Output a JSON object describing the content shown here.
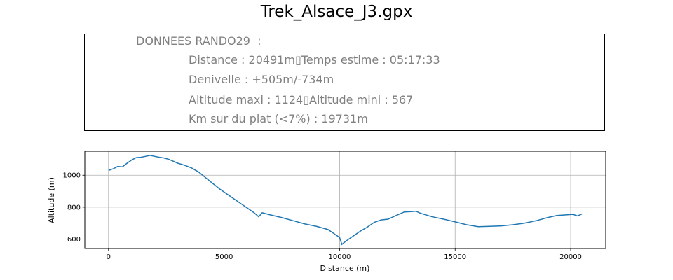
{
  "figure": {
    "title": "Trek_Alsace_J3.gpx"
  },
  "info": {
    "heading": "DONNEES RANDO29  :",
    "lines": [
      "Distance : 20491m▯Temps estime : 05:17:33",
      "Denivelle : +505m/-734m",
      "Altitude maxi : 1124▯Altitude mini : 567",
      "Km sur du plat (<7%) : 19731m"
    ]
  },
  "chart_data": {
    "type": "line",
    "xlabel": "Distance (m)",
    "ylabel": "Altitude (m)",
    "xlim": [
      -1025,
      21516
    ],
    "ylim": [
      541,
      1150
    ],
    "xticks": [
      0,
      5000,
      10000,
      15000,
      20000
    ],
    "yticks": [
      600,
      800,
      1000
    ],
    "grid": true,
    "line_color": "#1f77b4",
    "series": [
      {
        "x": [
          0,
          200,
          400,
          600,
          800,
          1000,
          1200,
          1400,
          1600,
          1800,
          2000,
          2200,
          2400,
          2600,
          2800,
          3000,
          3300,
          3600,
          3900,
          4200,
          4500,
          4800,
          5100,
          5400,
          5700,
          6000,
          6300,
          6500,
          6650,
          7000,
          7500,
          8000,
          8500,
          9000,
          9500,
          9800,
          10000,
          10100,
          10300,
          10600,
          10900,
          11200,
          11500,
          11800,
          12100,
          12400,
          12800,
          13100,
          13300,
          13500,
          14000,
          14500,
          15000,
          15500,
          16000,
          16500,
          17000,
          17500,
          18000,
          18500,
          19000,
          19400,
          19800,
          20100,
          20300,
          20491
        ],
        "y": [
          1030,
          1040,
          1055,
          1052,
          1075,
          1095,
          1110,
          1112,
          1118,
          1124,
          1118,
          1112,
          1108,
          1100,
          1088,
          1075,
          1062,
          1045,
          1020,
          985,
          950,
          915,
          885,
          855,
          825,
          795,
          765,
          740,
          765,
          752,
          735,
          715,
          695,
          680,
          660,
          630,
          610,
          567,
          590,
          620,
          650,
          675,
          705,
          720,
          725,
          745,
          770,
          772,
          775,
          762,
          740,
          725,
          708,
          690,
          678,
          680,
          683,
          690,
          700,
          715,
          735,
          748,
          752,
          755,
          745,
          758
        ]
      }
    ]
  }
}
